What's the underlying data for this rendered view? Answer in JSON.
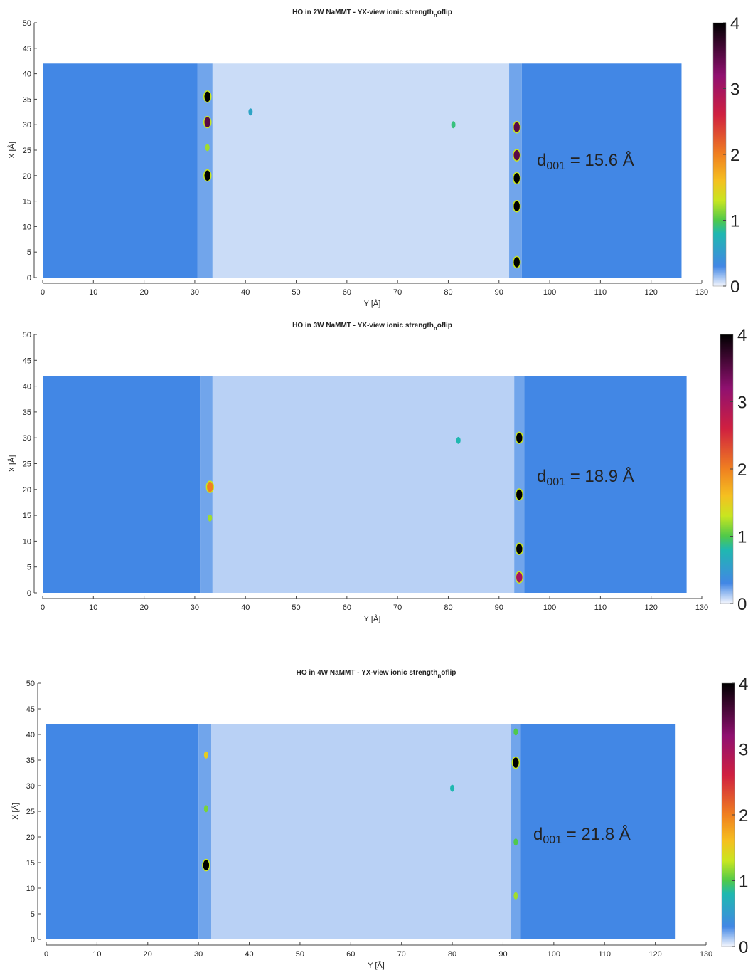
{
  "chart_data": [
    {
      "type": "heatmap",
      "title": "HO in 2W NaMMT - YX-view  ionic strength",
      "title_sub": "n",
      "title_end": "oflip",
      "xlabel": "Y [Å]",
      "ylabel": "X [Å]",
      "xlim": [
        0,
        130
      ],
      "ylim": [
        0,
        50
      ],
      "xticks": [
        0,
        10,
        20,
        30,
        40,
        50,
        60,
        70,
        80,
        90,
        100,
        110,
        120,
        130
      ],
      "yticks": [
        0,
        5,
        10,
        15,
        20,
        25,
        30,
        35,
        40,
        45,
        50
      ],
      "clim": [
        0,
        4
      ],
      "cticks": [
        0,
        1,
        2,
        3,
        4
      ],
      "annotation": {
        "pre": "d",
        "sub": "001",
        "post": " = 15.6 Å"
      },
      "regions": [
        {
          "x": [
            0,
            30.5
          ],
          "y": [
            0,
            42
          ],
          "value": 0.3
        },
        {
          "x": [
            30.5,
            33.5
          ],
          "y": [
            0,
            42
          ],
          "value": 0.22
        },
        {
          "x": [
            33.5,
            92
          ],
          "y": [
            0,
            42
          ],
          "value": 0.07
        },
        {
          "x": [
            92,
            94.5
          ],
          "y": [
            0,
            42
          ],
          "value": 0.22
        },
        {
          "x": [
            94.5,
            126
          ],
          "y": [
            0,
            42
          ],
          "value": 0.3
        }
      ],
      "spots": [
        {
          "x": 32.5,
          "y": 35.5,
          "value": 4
        },
        {
          "x": 32.5,
          "y": 30.5,
          "value": 3.5
        },
        {
          "x": 32.5,
          "y": 25.5,
          "value": 1.2
        },
        {
          "x": 32.5,
          "y": 20,
          "value": 4
        },
        {
          "x": 93.5,
          "y": 29.5,
          "value": 3.5
        },
        {
          "x": 93.5,
          "y": 24,
          "value": 3.5
        },
        {
          "x": 93.5,
          "y": 19.5,
          "value": 4
        },
        {
          "x": 93.5,
          "y": 14,
          "value": 4
        },
        {
          "x": 93.5,
          "y": 3,
          "value": 4
        },
        {
          "x": 81,
          "y": 30,
          "value": 0.9
        },
        {
          "x": 41,
          "y": 32.5,
          "value": 0.6
        }
      ]
    },
    {
      "type": "heatmap",
      "title": "HO in 3W NaMMT - YX-view  ionic strength",
      "title_sub": "n",
      "title_end": "oflip",
      "xlabel": "Y [Å]",
      "ylabel": "X [Å]",
      "xlim": [
        0,
        130
      ],
      "ylim": [
        0,
        50
      ],
      "xticks": [
        0,
        10,
        20,
        30,
        40,
        50,
        60,
        70,
        80,
        90,
        100,
        110,
        120,
        130
      ],
      "yticks": [
        0,
        5,
        10,
        15,
        20,
        25,
        30,
        35,
        40,
        45,
        50
      ],
      "clim": [
        0,
        4
      ],
      "cticks": [
        0,
        1,
        2,
        3,
        4
      ],
      "annotation": {
        "pre": "d",
        "sub": "001",
        "post": " = 18.9 Å"
      },
      "regions": [
        {
          "x": [
            0,
            31
          ],
          "y": [
            0,
            42
          ],
          "value": 0.3
        },
        {
          "x": [
            31,
            33.5
          ],
          "y": [
            0,
            42
          ],
          "value": 0.22
        },
        {
          "x": [
            33.5,
            93
          ],
          "y": [
            0,
            42
          ],
          "value": 0.1
        },
        {
          "x": [
            93,
            95
          ],
          "y": [
            0,
            42
          ],
          "value": 0.22
        },
        {
          "x": [
            95,
            127
          ],
          "y": [
            0,
            42
          ],
          "value": 0.3
        }
      ],
      "spots": [
        {
          "x": 33,
          "y": 20.5,
          "value": 2
        },
        {
          "x": 33,
          "y": 14.5,
          "value": 1.2
        },
        {
          "x": 94,
          "y": 30,
          "value": 4
        },
        {
          "x": 94,
          "y": 19,
          "value": 4
        },
        {
          "x": 94,
          "y": 8.5,
          "value": 4
        },
        {
          "x": 94,
          "y": 3,
          "value": 3
        },
        {
          "x": 82,
          "y": 29.5,
          "value": 0.8
        }
      ]
    },
    {
      "type": "heatmap",
      "title": "HO in 4W NaMMT - YX-view  ionic strength",
      "title_sub": "n",
      "title_end": "oflip",
      "xlabel": "Y [Å]",
      "ylabel": "X [Å]",
      "xlim": [
        0,
        130
      ],
      "ylim": [
        0,
        50
      ],
      "xticks": [
        0,
        10,
        20,
        30,
        40,
        50,
        60,
        70,
        80,
        90,
        100,
        110,
        120,
        130
      ],
      "yticks": [
        0,
        5,
        10,
        15,
        20,
        25,
        30,
        35,
        40,
        45,
        50
      ],
      "clim": [
        0,
        4
      ],
      "cticks": [
        0,
        1,
        2,
        3,
        4
      ],
      "annotation": {
        "pre": "d",
        "sub": "001",
        "post": " = 21.8 Å"
      },
      "regions": [
        {
          "x": [
            0,
            30
          ],
          "y": [
            0,
            42
          ],
          "value": 0.3
        },
        {
          "x": [
            30,
            32.5
          ],
          "y": [
            0,
            42
          ],
          "value": 0.22
        },
        {
          "x": [
            32.5,
            91.5
          ],
          "y": [
            0,
            42
          ],
          "value": 0.1
        },
        {
          "x": [
            91.5,
            93.5
          ],
          "y": [
            0,
            42
          ],
          "value": 0.22
        },
        {
          "x": [
            93.5,
            124
          ],
          "y": [
            0,
            42
          ],
          "value": 0.3
        }
      ],
      "spots": [
        {
          "x": 31.5,
          "y": 36,
          "value": 1.5
        },
        {
          "x": 31.5,
          "y": 25.5,
          "value": 1.1
        },
        {
          "x": 31.5,
          "y": 14.5,
          "value": 4
        },
        {
          "x": 92.5,
          "y": 40.5,
          "value": 1
        },
        {
          "x": 92.5,
          "y": 34.5,
          "value": 4
        },
        {
          "x": 92.5,
          "y": 19,
          "value": 1
        },
        {
          "x": 92.5,
          "y": 8.5,
          "value": 1.2
        },
        {
          "x": 80,
          "y": 29.5,
          "value": 0.8
        }
      ]
    }
  ]
}
